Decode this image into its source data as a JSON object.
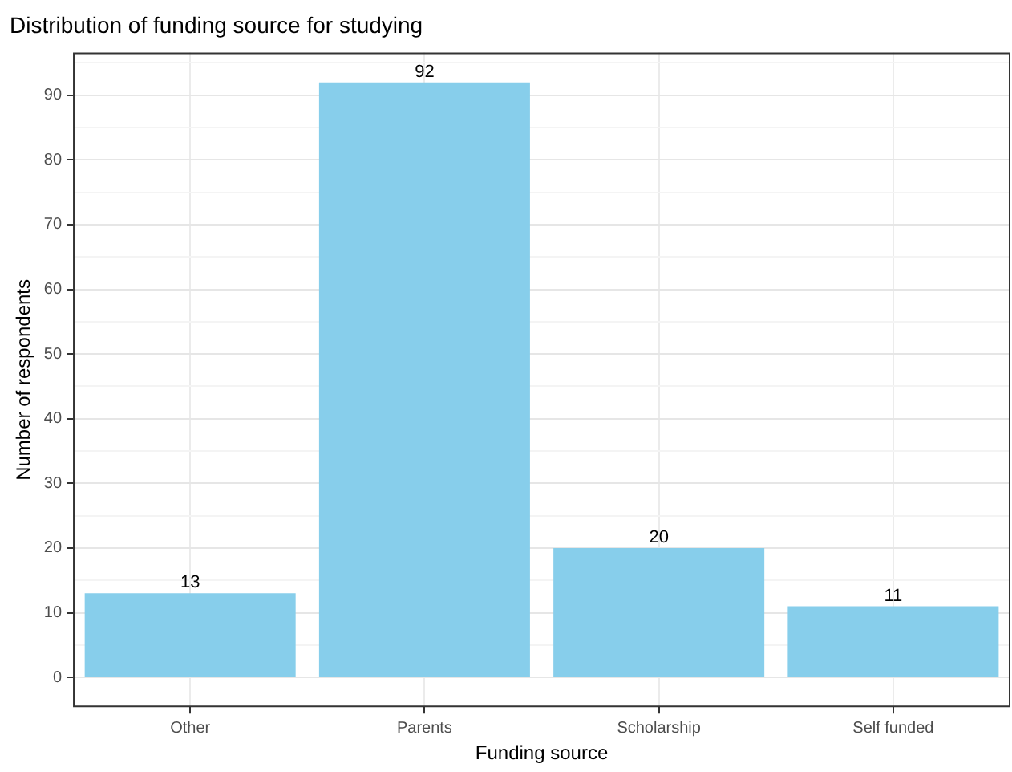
{
  "chart_data": {
    "type": "bar",
    "title": "Distribution of funding source for studying",
    "xlabel": "Funding source",
    "ylabel": "Number of respondents",
    "categories": [
      "Other",
      "Parents",
      "Scholarship",
      "Self funded"
    ],
    "values": [
      13,
      92,
      20,
      11
    ],
    "color": "#87ceeb",
    "data_labels": true,
    "grid": true,
    "legend": false,
    "ylim": [
      -4.6,
      96.6
    ],
    "yticks": [
      0,
      {
        "value": 5,
        "label": null
      },
      10,
      {
        "value": 15,
        "label": null
      },
      20,
      {
        "value": 25,
        "label": null
      },
      30,
      {
        "value": 35,
        "label": null
      },
      40,
      {
        "value": 45,
        "label": null
      },
      50,
      {
        "value": 55,
        "label": null
      },
      60,
      {
        "value": 65,
        "label": null
      },
      70,
      {
        "value": 75,
        "label": null
      },
      80,
      {
        "value": 85,
        "label": null
      },
      90,
      {
        "value": 95,
        "label": null
      }
    ]
  }
}
